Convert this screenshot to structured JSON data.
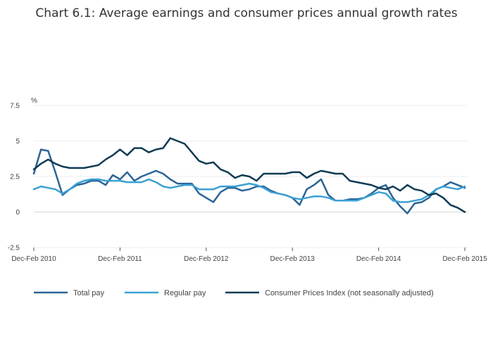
{
  "chart_data": {
    "type": "line",
    "title": "Chart 6.1: Average earnings and consumer prices annual growth rates",
    "ylabel": "%",
    "xlabel": "",
    "ylim": [
      -2.5,
      7.5
    ],
    "yticks": [
      -2.5,
      0,
      2.5,
      5,
      7.5
    ],
    "ytick_labels": [
      "-2.5",
      "0",
      "2.5",
      "5",
      "7.5"
    ],
    "xticks": [
      {
        "index": 0,
        "label": "Dec-Feb 2010"
      },
      {
        "index": 12,
        "label": "Dec-Feb 2011"
      },
      {
        "index": 24,
        "label": "Dec-Feb 2012"
      },
      {
        "index": 36,
        "label": "Dec-Feb 2013"
      },
      {
        "index": 48,
        "label": "Dec-Feb 2014"
      },
      {
        "index": 60,
        "label": "Dec-Feb 2015"
      }
    ],
    "grid": true,
    "legend_position": "bottom",
    "series": [
      {
        "name": "Total pay",
        "color": "#2a6496",
        "values": [
          2.7,
          4.4,
          4.3,
          2.8,
          1.2,
          1.6,
          1.9,
          2.0,
          2.2,
          2.2,
          1.9,
          2.6,
          2.3,
          2.8,
          2.2,
          2.5,
          2.7,
          2.9,
          2.7,
          2.3,
          2.0,
          2.0,
          2.0,
          1.3,
          1.0,
          0.7,
          1.4,
          1.7,
          1.7,
          1.5,
          1.6,
          1.8,
          1.8,
          1.5,
          1.3,
          1.2,
          1.0,
          0.5,
          1.6,
          1.9,
          2.3,
          1.2,
          0.8,
          0.8,
          0.9,
          0.9,
          1.0,
          1.3,
          1.7,
          1.9,
          1.0,
          0.4,
          -0.1,
          0.6,
          0.7,
          1.0,
          1.6,
          1.8,
          2.1,
          1.9,
          1.7
        ]
      },
      {
        "name": "Regular pay",
        "color": "#3aa1d4",
        "values": [
          1.6,
          1.8,
          1.7,
          1.6,
          1.3,
          1.6,
          2.0,
          2.2,
          2.3,
          2.3,
          2.2,
          2.2,
          2.2,
          2.1,
          2.1,
          2.1,
          2.3,
          2.1,
          1.8,
          1.7,
          1.8,
          1.9,
          1.9,
          1.6,
          1.6,
          1.6,
          1.8,
          1.8,
          1.8,
          1.9,
          2.0,
          1.9,
          1.7,
          1.4,
          1.3,
          1.2,
          1.0,
          0.9,
          1.0,
          1.1,
          1.1,
          1.0,
          0.8,
          0.8,
          0.8,
          0.8,
          1.0,
          1.2,
          1.4,
          1.3,
          0.8,
          0.7,
          0.7,
          0.8,
          0.9,
          1.2,
          1.6,
          1.8,
          1.7,
          1.6,
          1.8
        ]
      },
      {
        "name": "Consumer Prices Index (not seasonally adjusted)",
        "color": "#0e3a54",
        "values": [
          3.0,
          3.4,
          3.7,
          3.4,
          3.2,
          3.1,
          3.1,
          3.1,
          3.2,
          3.3,
          3.7,
          4.0,
          4.4,
          4.0,
          4.5,
          4.5,
          4.2,
          4.4,
          4.5,
          5.2,
          5.0,
          4.8,
          4.2,
          3.6,
          3.4,
          3.5,
          3.0,
          2.8,
          2.4,
          2.6,
          2.5,
          2.2,
          2.7,
          2.7,
          2.7,
          2.7,
          2.8,
          2.8,
          2.4,
          2.7,
          2.9,
          2.8,
          2.7,
          2.7,
          2.2,
          2.1,
          2.0,
          1.9,
          1.7,
          1.6,
          1.8,
          1.5,
          1.9,
          1.6,
          1.5,
          1.2,
          1.3,
          1.0,
          0.5,
          0.3,
          0.0
        ]
      }
    ]
  }
}
